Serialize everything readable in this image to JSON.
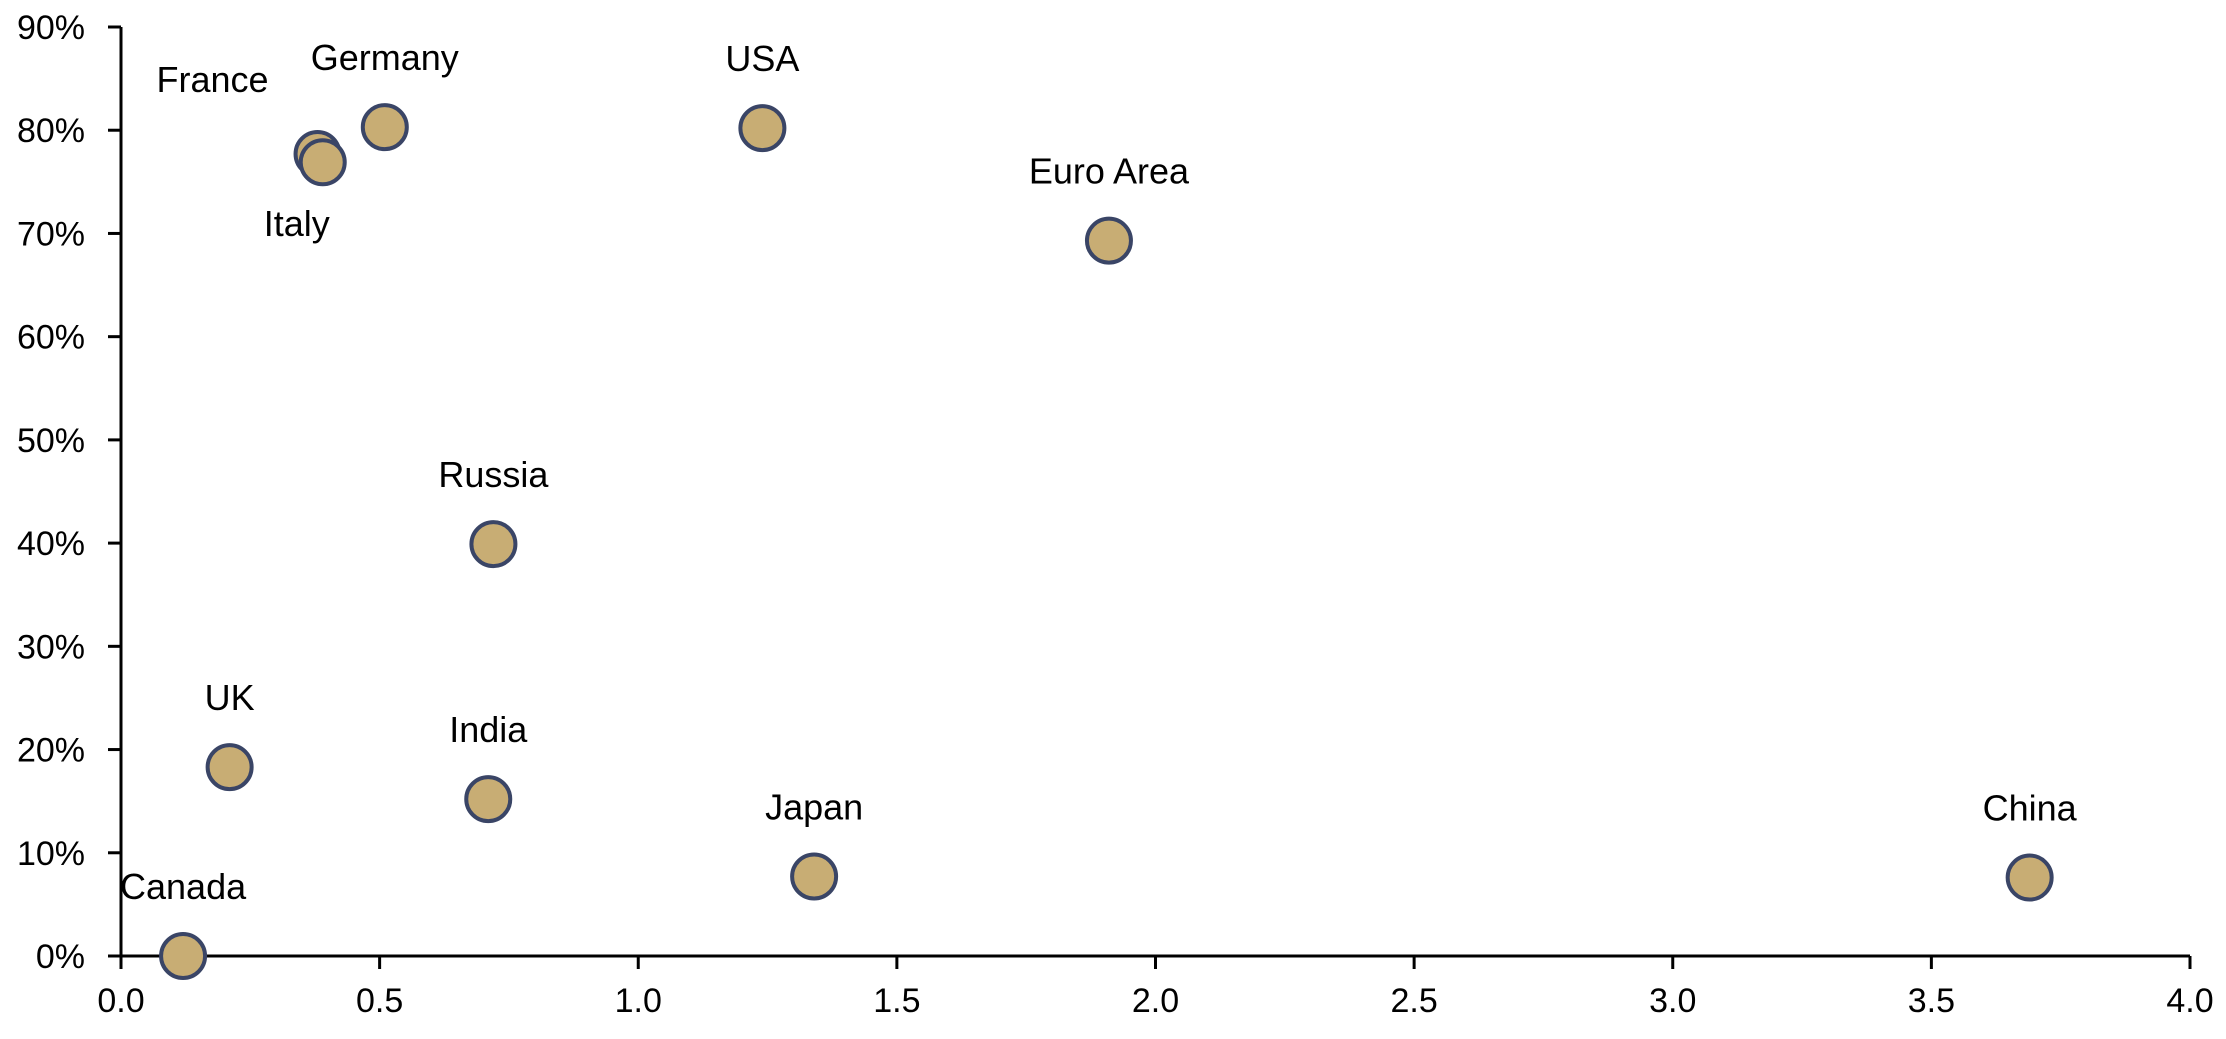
{
  "chart_data": {
    "type": "scatter",
    "title": "",
    "xlabel": "",
    "ylabel": "",
    "xlim": [
      0,
      4.0
    ],
    "ylim": [
      0,
      90
    ],
    "x_ticks": [
      0.0,
      0.5,
      1.0,
      1.5,
      2.0,
      2.5,
      3.0,
      3.5,
      4.0
    ],
    "x_tick_labels": [
      "0.0",
      "0.5",
      "1.0",
      "1.5",
      "2.0",
      "2.5",
      "3.0",
      "3.5",
      "4.0"
    ],
    "y_ticks": [
      0,
      10,
      20,
      30,
      40,
      50,
      60,
      70,
      80,
      90
    ],
    "y_tick_labels": [
      "0%",
      "10%",
      "20%",
      "30%",
      "40%",
      "50%",
      "60%",
      "70%",
      "80%",
      "90%"
    ],
    "grid": false,
    "legend": "none",
    "marker_fill": "#c8ad74",
    "marker_edge": "#3a4566",
    "points": [
      {
        "label": "France",
        "x": 0.38,
        "y": 77.7,
        "label_pos": "upper-left"
      },
      {
        "label": "Germany",
        "x": 0.51,
        "y": 80.3,
        "label_pos": "above"
      },
      {
        "label": "Italy",
        "x": 0.39,
        "y": 76.9,
        "label_pos": "below-left"
      },
      {
        "label": "USA",
        "x": 1.24,
        "y": 80.2,
        "label_pos": "above"
      },
      {
        "label": "Euro Area",
        "x": 1.91,
        "y": 69.3,
        "label_pos": "above"
      },
      {
        "label": "Russia",
        "x": 0.72,
        "y": 39.9,
        "label_pos": "above"
      },
      {
        "label": "UK",
        "x": 0.21,
        "y": 18.3,
        "label_pos": "above"
      },
      {
        "label": "India",
        "x": 0.71,
        "y": 15.2,
        "label_pos": "above"
      },
      {
        "label": "Japan",
        "x": 1.34,
        "y": 7.7,
        "label_pos": "above"
      },
      {
        "label": "China",
        "x": 3.69,
        "y": 7.6,
        "label_pos": "above"
      },
      {
        "label": "Canada",
        "x": 0.12,
        "y": 0.0,
        "label_pos": "above"
      }
    ]
  }
}
